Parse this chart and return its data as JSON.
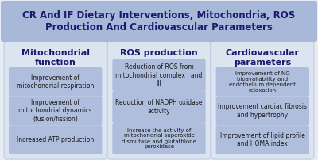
{
  "title": "CR And IF Dietary Interventions, Mitochondria, ROS\nProduction And Cardiovascular Parameters",
  "title_bg": "#a8b8d8",
  "title_color": "#1a1a6e",
  "outer_bg": "#e8ecf4",
  "col_bg": "#dce4f0",
  "box_bg": "#b0bedd",
  "col_border": "#c0cce4",
  "figsize": [
    4.0,
    2.02
  ],
  "dpi": 100,
  "columns": [
    {
      "header": "Mitochondrial\nfunction",
      "items": [
        "Improvement of\nmitochondrial respiration",
        "Improvement of\nmitochondrial dynamics\n(fusion/fission)",
        "Increased ATP production"
      ]
    },
    {
      "header": "ROS production",
      "items": [
        "Reduction of ROS from\nmitochondrial complex I and\nIII",
        "Reduction of NADPH oxidase\nactivity",
        "Increase the activity of\nmitochondrial superoxide\ndismutase and glutathione\nperoxidase"
      ]
    },
    {
      "header": "Cardiovascular\nparameters",
      "items": [
        "Improvement of NO\nbioavailability and\nendothelium dependent\nrelaxation",
        "Improvement cardiac fibrosis\nand hypertrophy",
        "Improvement of lipid profile\nand HOMA index"
      ]
    }
  ]
}
